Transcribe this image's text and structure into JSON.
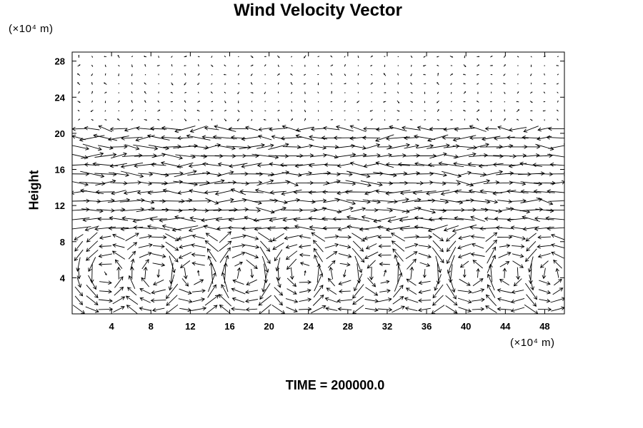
{
  "chart_data": {
    "type": "vector-field",
    "title": "Wind Velocity Vector",
    "ylabel": "Height",
    "y_unit_label": "(×10⁴ m)",
    "x_unit_label": "(×10⁴ m)",
    "footer": "TIME = 200000.0",
    "xlim": [
      0,
      50
    ],
    "ylim": [
      0,
      29
    ],
    "x_ticks": [
      "4",
      "8",
      "12",
      "16",
      "20",
      "24",
      "28",
      "32",
      "36",
      "40",
      "44",
      "48"
    ],
    "y_ticks": [
      "4",
      "8",
      "12",
      "16",
      "20",
      "24",
      "28"
    ],
    "x_tick_values": [
      4,
      8,
      12,
      16,
      20,
      24,
      28,
      32,
      36,
      40,
      44,
      48
    ],
    "y_tick_values": [
      4,
      8,
      12,
      16,
      20,
      24,
      28
    ],
    "grid": false,
    "vortex_centers_x": [
      3.5,
      8.5,
      12.5,
      17.5,
      23.5,
      27.5,
      31.5,
      35.5,
      40.5,
      44.5,
      48.5
    ]
  }
}
